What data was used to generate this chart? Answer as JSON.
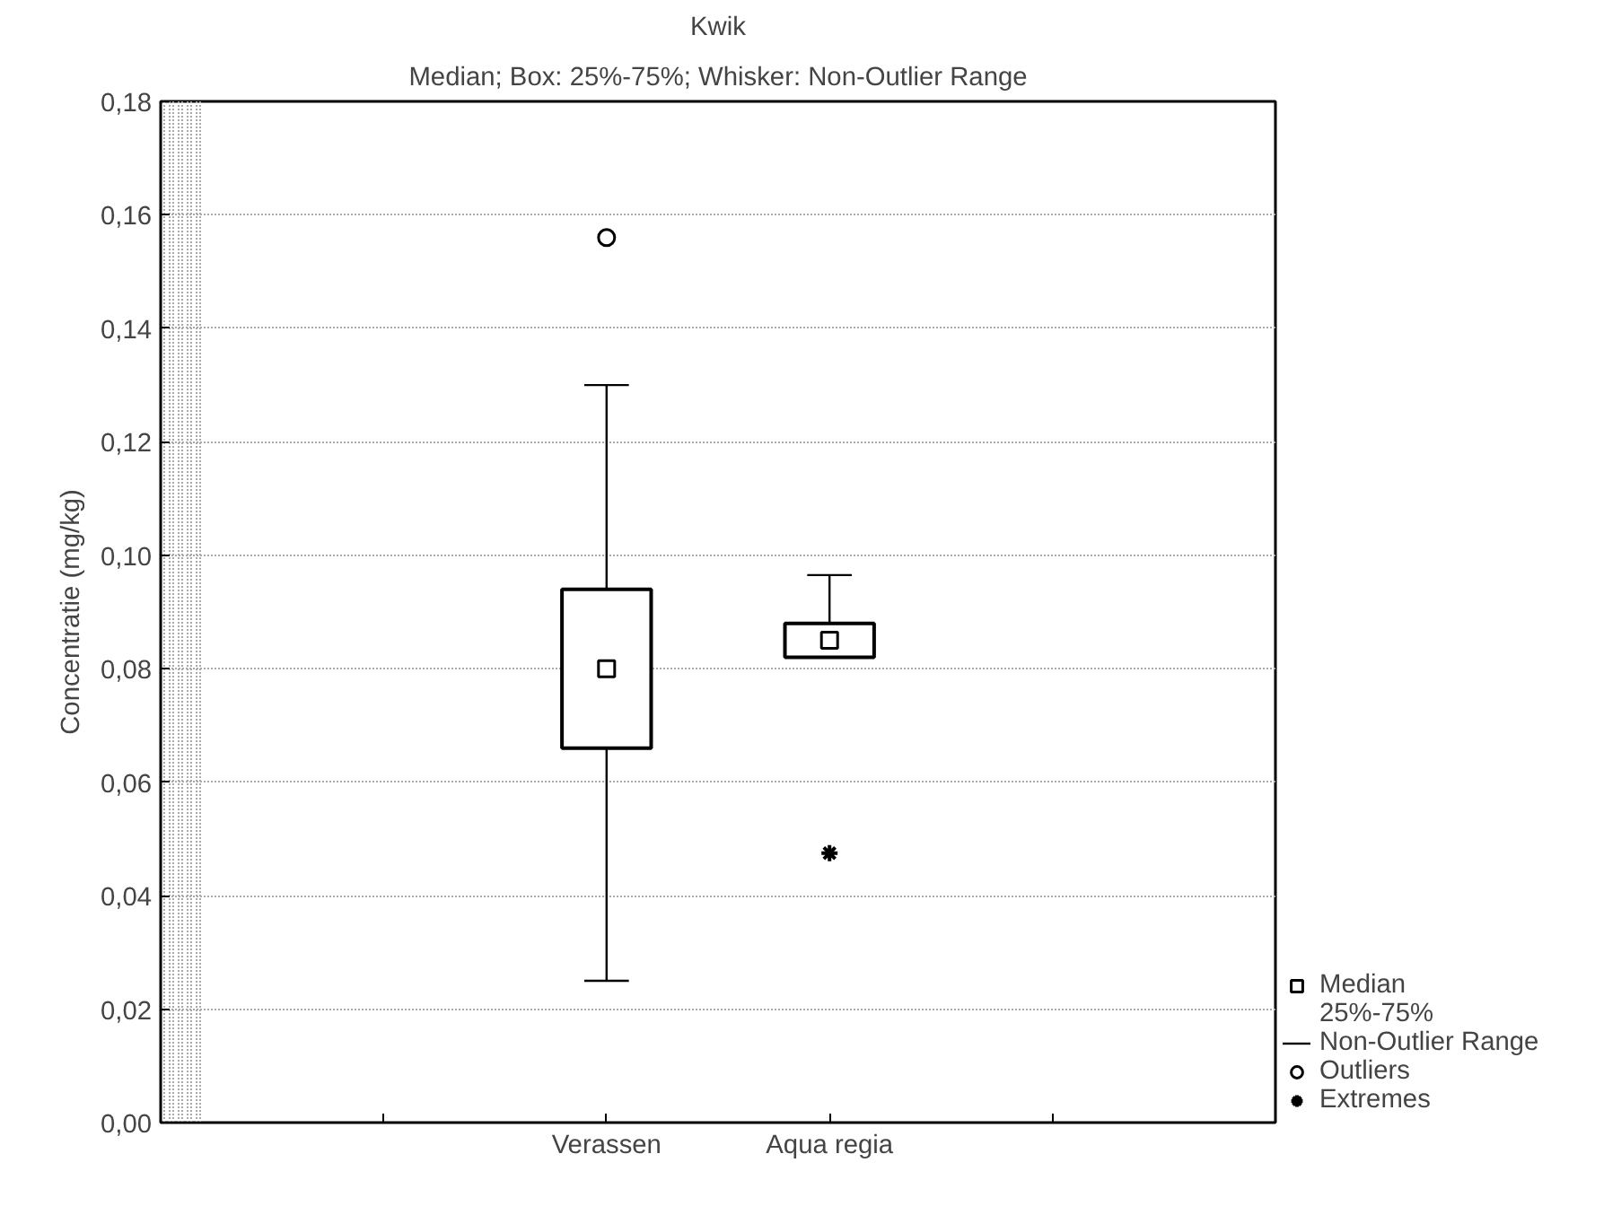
{
  "chart_data": {
    "type": "box",
    "title": "Kwik",
    "subtitle": "Median; Box: 25%-75%; Whisker: Non-Outlier Range",
    "ylabel": "Concentratie (mg/kg)",
    "categories": [
      null,
      "Verassen",
      "Aqua regia",
      null
    ],
    "ylim": [
      0,
      0.18
    ],
    "yticks": [
      {
        "value": 0,
        "label": "0,00"
      },
      {
        "value": 0.02,
        "label": "0,02"
      },
      {
        "value": 0.04,
        "label": "0,04"
      },
      {
        "value": 0.06,
        "label": "0,06"
      },
      {
        "value": 0.08,
        "label": "0,08"
      },
      {
        "value": 0.1,
        "label": "0,10"
      },
      {
        "value": 0.12,
        "label": "0,12"
      },
      {
        "value": 0.14,
        "label": "0,14"
      },
      {
        "value": 0.16,
        "label": "0,16"
      },
      {
        "value": 0.18,
        "label": "0,18"
      }
    ],
    "grid": true,
    "legend": "bottom right",
    "annotations": [
      "Median",
      "25%-75%",
      "Non-Outlier Range",
      "Outliers"
    ],
    "series": [
      {
        "color": "#000000",
        "boxes": [
          null,
          {
            "low": 0.025,
            "q1": 0.066,
            "median": 0.08,
            "q3": 0.094,
            "high": 0.13,
            "outliers": [
              0.156
            ]
          },
          {
            "low": 0.082,
            "q1": 0.082,
            "median": 0.085,
            "q3": 0.088,
            "high": 0.0965
          },
          null
        ]
      },
      {
        "type": "scatter",
        "name": "Extremes",
        "color": "#000000",
        "marker": "cross",
        "x": [
          "Aqua regia"
        ],
        "values": [
          0.0475
        ]
      }
    ]
  }
}
